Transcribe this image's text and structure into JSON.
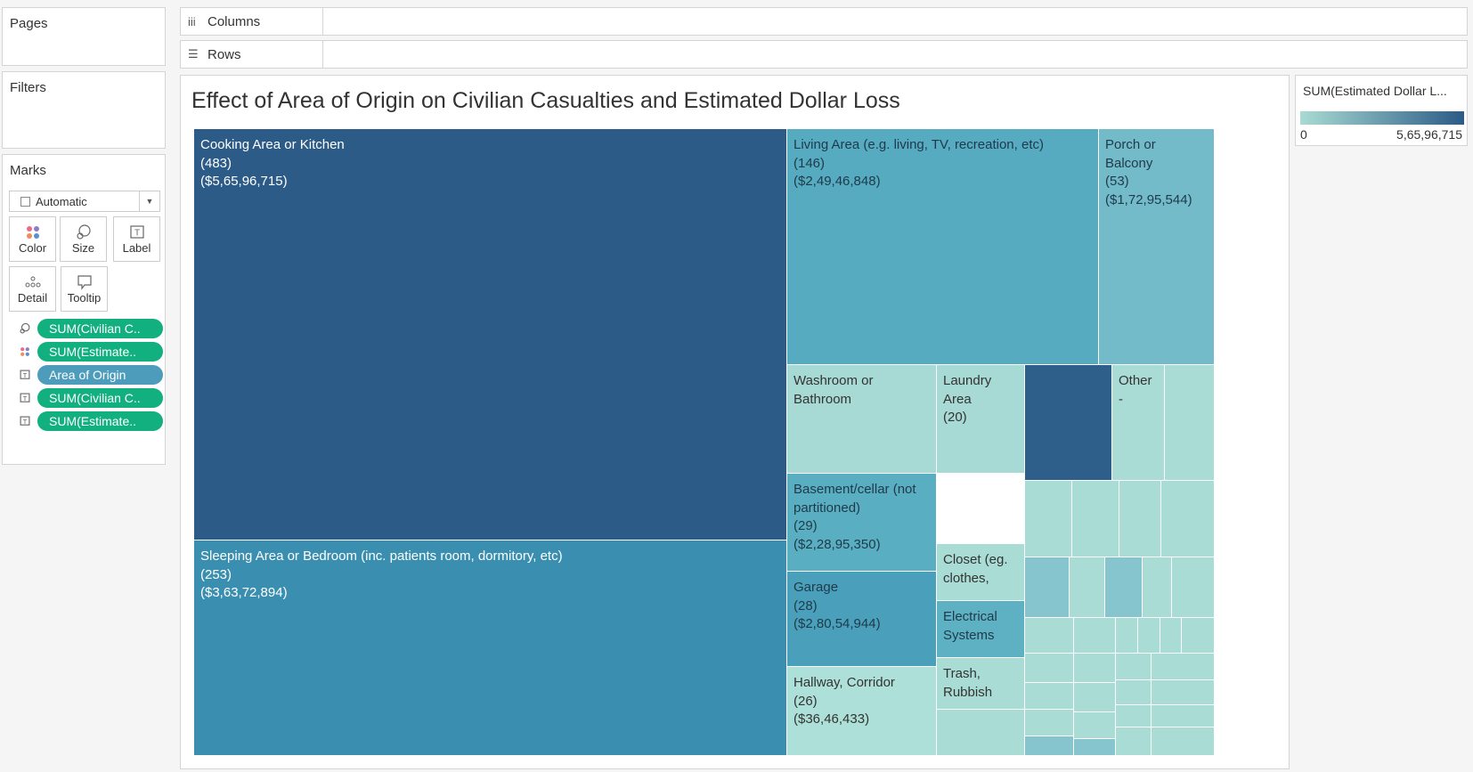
{
  "pages": {
    "label": "Pages"
  },
  "filters": {
    "label": "Filters"
  },
  "marks": {
    "label": "Marks",
    "mark_type": "Automatic",
    "buttons": [
      "Color",
      "Size",
      "Label",
      "Detail",
      "Tooltip"
    ],
    "pills": [
      {
        "text": "SUM(Civilian C..",
        "icon": "size-icon",
        "color": "green"
      },
      {
        "text": "SUM(Estimate..",
        "icon": "color-icon",
        "color": "green"
      },
      {
        "text": "Area of Origin",
        "icon": "label-icon",
        "color": "blue"
      },
      {
        "text": "SUM(Civilian C..",
        "icon": "label-icon",
        "color": "green"
      },
      {
        "text": "SUM(Estimate..",
        "icon": "label-icon",
        "color": "green"
      }
    ]
  },
  "columns_shelf": {
    "label": "Columns"
  },
  "rows_shelf": {
    "label": "Rows"
  },
  "viz": {
    "title": "Effect of  Area of Origin on Civilian Casualties and Estimated Dollar Loss"
  },
  "legend": {
    "title": "SUM(Estimated Dollar L...",
    "min": "0",
    "max": "5,65,96,715",
    "color_low": "#a9dbd3",
    "color_high": "#2b5b87"
  },
  "chart_data": {
    "type": "treemap",
    "size_measure": "SUM(Civilian Casualties)",
    "color_measure": "SUM(Estimated Dollar Loss)",
    "items": [
      {
        "label": "Cooking Area or Kitchen",
        "casualties": "(483)",
        "loss": "($5,65,96,715)",
        "color": "#2c5b87"
      },
      {
        "label": "Sleeping Area or Bedroom (inc. patients room, dormitory, etc)",
        "casualties": "(253)",
        "loss": "($3,63,72,894)",
        "color": "#3a8fb0"
      },
      {
        "label": "Living Area (e.g. living, TV, recreation, etc)",
        "casualties": "(146)",
        "loss": "($2,49,46,848)",
        "color": "#56abc1"
      },
      {
        "label": "Porch or Balcony",
        "casualties": "(53)",
        "loss": "($1,72,95,544)",
        "color": "#74bbc9"
      },
      {
        "label": "Washroom or Bathroom",
        "casualties": "",
        "loss": "",
        "color": "#a7dad4"
      },
      {
        "label": "Laundry Area",
        "casualties": "(20)",
        "loss": "",
        "color": "#a7dad4"
      },
      {
        "label": "",
        "casualties": "",
        "loss": "",
        "color": "#2e5e8a"
      },
      {
        "label": "Other",
        "casualties": "-",
        "loss": "",
        "color": "#a9dcd5"
      },
      {
        "label": "Basement/cellar (not partitioned)",
        "casualties": "(29)",
        "loss": "($2,28,95,350)",
        "color": "#5aaec2"
      },
      {
        "label": "Garage",
        "casualties": "(28)",
        "loss": "($2,80,54,944)",
        "color": "#4aa0bb"
      },
      {
        "label": "Hallway, Corridor",
        "casualties": "(26)",
        "loss": "($36,46,433)",
        "color": "#ade0d8"
      },
      {
        "label": "Closet (eg. clothes,",
        "casualties": "",
        "loss": "",
        "color": "#a9dcd5"
      },
      {
        "label": "Electrical Systems",
        "casualties": "",
        "loss": "",
        "color": "#5eb1c3"
      },
      {
        "label": "Trash, Rubbish",
        "casualties": "",
        "loss": "",
        "color": "#a9dcd5"
      }
    ]
  }
}
